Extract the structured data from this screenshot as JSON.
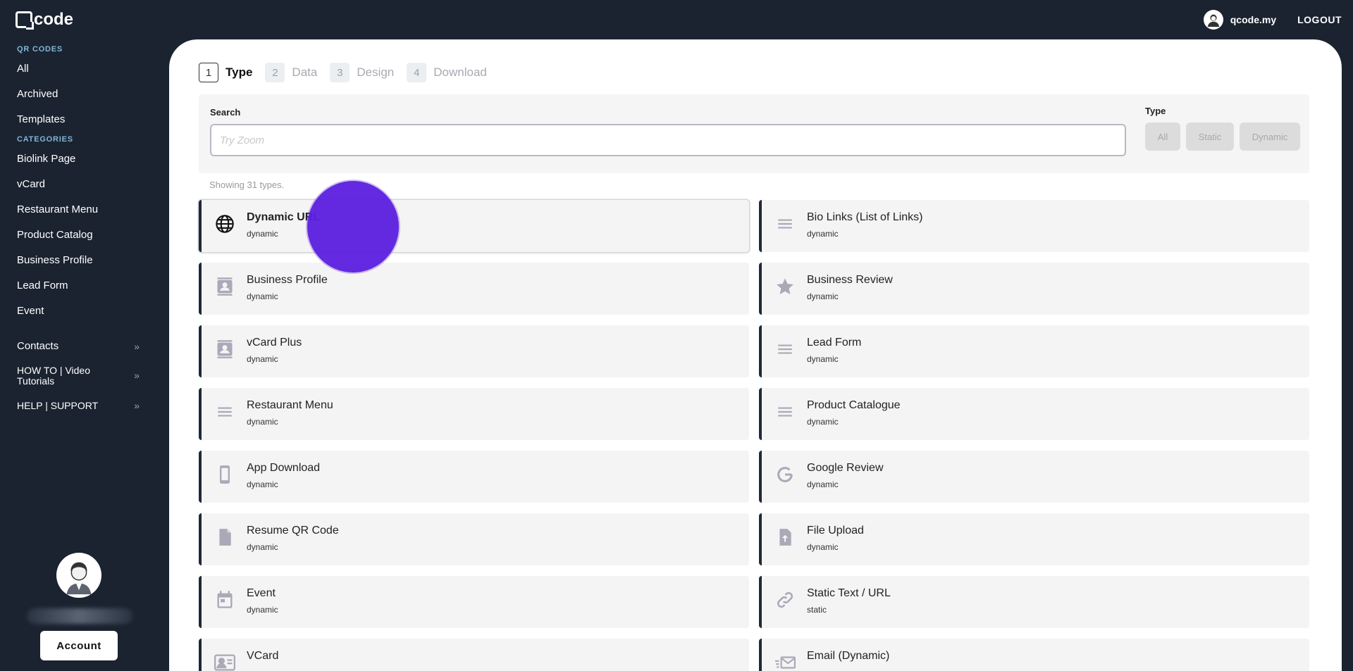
{
  "header": {
    "logo_text": "code",
    "username": "qcode.my",
    "logout_label": "LOGOUT"
  },
  "sidebar": {
    "section_qr": "QR CODES",
    "qr_items": [
      {
        "label": "All"
      },
      {
        "label": "Archived"
      },
      {
        "label": "Templates"
      }
    ],
    "section_categories": "CATEGORIES",
    "category_items": [
      {
        "label": "Biolink Page"
      },
      {
        "label": "vCard"
      },
      {
        "label": "Restaurant Menu"
      },
      {
        "label": "Product Catalog"
      },
      {
        "label": "Business Profile"
      },
      {
        "label": "Lead Form"
      },
      {
        "label": "Event"
      }
    ],
    "expandable_items": [
      {
        "label": "Contacts"
      },
      {
        "label": "HOW TO | Video Tutorials"
      },
      {
        "label": "HELP | SUPPORT"
      }
    ],
    "account_label": "Account"
  },
  "steps": [
    {
      "num": "1",
      "label": "Type"
    },
    {
      "num": "2",
      "label": "Data"
    },
    {
      "num": "3",
      "label": "Design"
    },
    {
      "num": "4",
      "label": "Download"
    }
  ],
  "search": {
    "label": "Search",
    "placeholder": "Try Zoom",
    "value": ""
  },
  "type_filter": {
    "label": "Type",
    "options": [
      "All",
      "Static",
      "Dynamic"
    ]
  },
  "showing_text": "Showing 31 types.",
  "types": [
    {
      "title": "Dynamic URL",
      "sub": "dynamic",
      "icon": "globe-icon"
    },
    {
      "title": "Bio Links (List of Links)",
      "sub": "dynamic",
      "icon": "list-icon"
    },
    {
      "title": "Business Profile",
      "sub": "dynamic",
      "icon": "contact-card-icon"
    },
    {
      "title": "Business Review",
      "sub": "dynamic",
      "icon": "star-icon"
    },
    {
      "title": "vCard Plus",
      "sub": "dynamic",
      "icon": "contact-card-icon"
    },
    {
      "title": "Lead Form",
      "sub": "dynamic",
      "icon": "list-icon"
    },
    {
      "title": "Restaurant Menu",
      "sub": "dynamic",
      "icon": "list-icon"
    },
    {
      "title": "Product Catalogue",
      "sub": "dynamic",
      "icon": "list-icon"
    },
    {
      "title": "App Download",
      "sub": "dynamic",
      "icon": "phone-icon"
    },
    {
      "title": "Google Review",
      "sub": "dynamic",
      "icon": "google-icon"
    },
    {
      "title": "Resume QR Code",
      "sub": "dynamic",
      "icon": "document-icon"
    },
    {
      "title": "File Upload",
      "sub": "dynamic",
      "icon": "file-upload-icon"
    },
    {
      "title": "Event",
      "sub": "dynamic",
      "icon": "calendar-icon"
    },
    {
      "title": "Static Text / URL",
      "sub": "static",
      "icon": "link-icon"
    },
    {
      "title": "VCard",
      "sub": "",
      "icon": "id-card-icon"
    },
    {
      "title": "Email (Dynamic)",
      "sub": "",
      "icon": "email-icon"
    }
  ]
}
